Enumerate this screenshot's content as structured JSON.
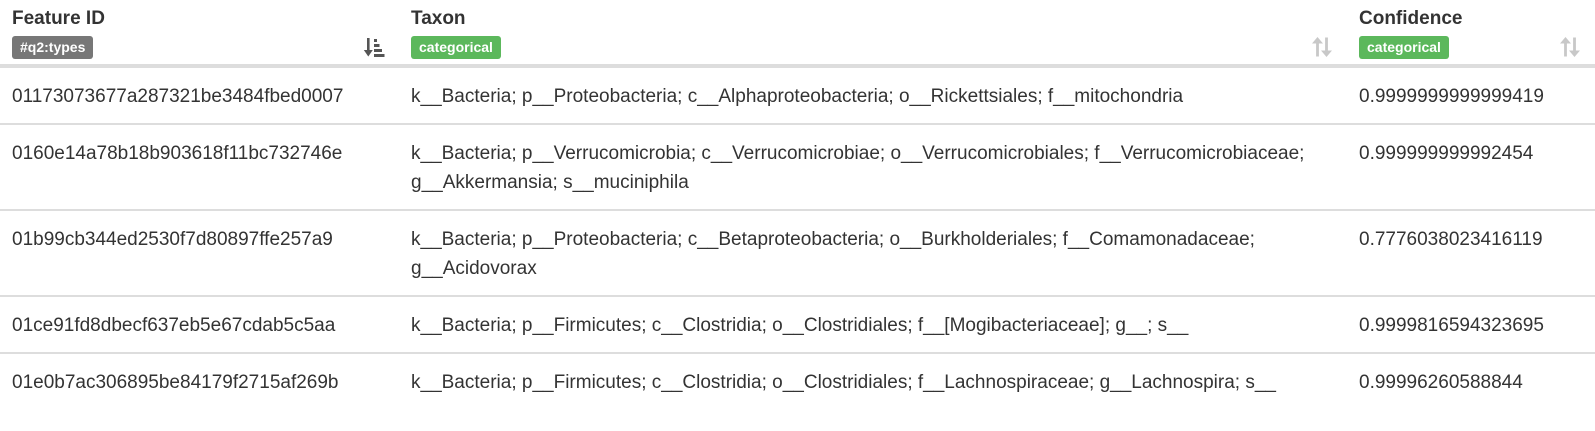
{
  "columns": [
    {
      "title": "Feature ID",
      "type": "#q2:types"
    },
    {
      "title": "Taxon",
      "type": "categorical"
    },
    {
      "title": "Confidence",
      "type": "categorical"
    }
  ],
  "rows": [
    {
      "feature_id": "01173073677a287321be3484fbed0007",
      "taxon": "k__Bacteria; p__Proteobacteria; c__Alphaproteobacteria; o__Rickettsiales; f__mitochondria",
      "confidence": "0.9999999999999419"
    },
    {
      "feature_id": "0160e14a78b18b903618f11bc732746e",
      "taxon": "k__Bacteria; p__Verrucomicrobia; c__Verrucomicrobiae; o__Verrucomicrobiales; f__Verrucomicrobiaceae; g__Akkermansia; s__muciniphila",
      "confidence": "0.999999999992454"
    },
    {
      "feature_id": "01b99cb344ed2530f7d80897ffe257a9",
      "taxon": "k__Bacteria; p__Proteobacteria; c__Betaproteobacteria; o__Burkholderiales; f__Comamonadaceae; g__Acidovorax",
      "confidence": "0.7776038023416119"
    },
    {
      "feature_id": "01ce91fd8dbecf637eb5e67cdab5c5aa",
      "taxon": "k__Bacteria; p__Firmicutes; c__Clostridia; o__Clostridiales; f__[Mogibacteriaceae]; g__; s__",
      "confidence": "0.9999816594323695"
    },
    {
      "feature_id": "01e0b7ac306895be84179f2715af269b",
      "taxon": "k__Bacteria; p__Firmicutes; c__Clostridia; o__Clostridiales; f__Lachnospiraceae; g__Lachnospira; s__",
      "confidence": "0.99996260588844"
    }
  ],
  "icons": {
    "sort_active": "sort-amount-down-icon",
    "sort_inactive": "sort-icon"
  },
  "colors": {
    "badge_types": "#777777",
    "badge_categorical": "#5cb85c",
    "sort_active": "#555555",
    "sort_inactive": "#c8c8c8"
  }
}
